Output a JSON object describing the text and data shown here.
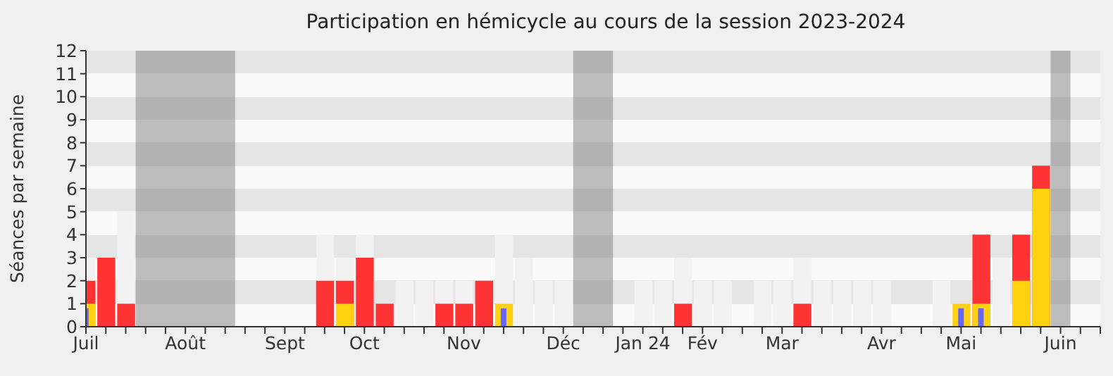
{
  "chart_data": {
    "type": "bar",
    "title": "Participation en hémicycle au cours de la session 2023-2024",
    "ylabel": "Séances par semaine",
    "x": [
      "2023-07-03",
      "2023-07-10",
      "2023-07-17",
      "2023-07-24",
      "2023-07-31",
      "2023-08-07",
      "2023-08-14",
      "2023-08-21",
      "2023-08-28",
      "2023-09-04",
      "2023-09-11",
      "2023-09-18",
      "2023-09-25",
      "2023-10-02",
      "2023-10-09",
      "2023-10-16",
      "2023-10-23",
      "2023-10-30",
      "2023-11-06",
      "2023-11-13",
      "2023-11-20",
      "2023-11-27",
      "2023-12-04",
      "2023-12-11",
      "2023-12-18",
      "2023-12-25",
      "2024-01-01",
      "2024-01-08",
      "2024-01-15",
      "2024-01-22",
      "2024-01-29",
      "2024-02-05",
      "2024-02-12",
      "2024-02-19",
      "2024-02-26",
      "2024-03-04",
      "2024-03-11",
      "2024-03-18",
      "2024-03-25",
      "2024-04-01",
      "2024-04-08",
      "2024-04-15",
      "2024-04-22",
      "2024-04-29",
      "2024-05-06",
      "2024-05-13",
      "2024-05-20",
      "2024-05-27",
      "2024-06-03"
    ],
    "series": [
      {
        "color": "#f2f2f2",
        "values": [
          3,
          null,
          5,
          null,
          null,
          null,
          null,
          null,
          null,
          null,
          null,
          null,
          4,
          3,
          4,
          null,
          2,
          2,
          2,
          2,
          null,
          4,
          3,
          2,
          2,
          null,
          null,
          null,
          2,
          2,
          3,
          2,
          2,
          null,
          2,
          2,
          3,
          2,
          2,
          2,
          2,
          null,
          null,
          2,
          null,
          null,
          3,
          null,
          null
        ]
      },
      {
        "color": "#ff3333",
        "values": [
          2,
          3,
          1,
          null,
          null,
          null,
          null,
          null,
          null,
          null,
          null,
          null,
          2,
          2,
          3,
          1,
          null,
          null,
          1,
          1,
          2,
          null,
          null,
          null,
          null,
          null,
          null,
          null,
          null,
          null,
          1,
          null,
          null,
          null,
          null,
          null,
          1,
          null,
          null,
          null,
          null,
          null,
          null,
          null,
          null,
          4,
          null,
          4,
          7
        ]
      },
      {
        "color": "#ffd10f",
        "values": [
          1,
          null,
          null,
          null,
          null,
          null,
          null,
          null,
          null,
          null,
          null,
          null,
          null,
          1,
          null,
          null,
          null,
          null,
          null,
          null,
          null,
          1,
          null,
          null,
          null,
          null,
          null,
          null,
          null,
          null,
          null,
          null,
          null,
          null,
          null,
          null,
          null,
          null,
          null,
          null,
          null,
          null,
          null,
          null,
          1,
          1,
          null,
          2,
          6
        ]
      },
      {
        "color": "#6666ff",
        "x": [
          "2023-07-03",
          "2023-11-27",
          "2024-05-06",
          "2024-05-13"
        ],
        "values": [
          0.8,
          0.8,
          0.8,
          0.8
        ]
      }
    ],
    "bands": [
      {
        "axis": "x",
        "from": "2023-07-20T12:00",
        "to": "2023-08-24T12:00",
        "color": "#808080"
      },
      {
        "axis": "x",
        "from": "2023-12-21T12:00",
        "to": "2024-01-04T12:00",
        "color": "#808080"
      },
      {
        "axis": "x",
        "from": "2024-06-06T12:00",
        "to": "2024-06-13T12:00",
        "color": "#808080"
      }
    ],
    "xlim": [
      "2023-07-03",
      "2024-06-24"
    ],
    "xticks": [
      {
        "value": "2023-07-03",
        "label": "Juil"
      },
      {
        "value": "2023-07-10",
        "label": null
      },
      {
        "value": "2023-07-17",
        "label": null
      },
      {
        "value": "2023-07-24",
        "label": null
      },
      {
        "value": "2023-07-31",
        "label": null
      },
      {
        "value": "2023-08-07",
        "label": "Août"
      },
      {
        "value": "2023-08-14",
        "label": null
      },
      {
        "value": "2023-08-21",
        "label": null
      },
      {
        "value": "2023-08-28",
        "label": null
      },
      {
        "value": "2023-09-04",
        "label": null
      },
      {
        "value": "2023-09-11",
        "label": "Sept"
      },
      {
        "value": "2023-09-18",
        "label": null
      },
      {
        "value": "2023-09-25",
        "label": null
      },
      {
        "value": "2023-10-02",
        "label": null
      },
      {
        "value": "2023-10-09",
        "label": "Oct"
      },
      {
        "value": "2023-10-16",
        "label": null
      },
      {
        "value": "2023-10-23",
        "label": null
      },
      {
        "value": "2023-10-30",
        "label": null
      },
      {
        "value": "2023-11-06",
        "label": null
      },
      {
        "value": "2023-11-13",
        "label": "Nov"
      },
      {
        "value": "2023-11-20",
        "label": null
      },
      {
        "value": "2023-11-27",
        "label": null
      },
      {
        "value": "2023-12-04",
        "label": null
      },
      {
        "value": "2023-12-11",
        "label": null
      },
      {
        "value": "2023-12-18",
        "label": "Déc"
      },
      {
        "value": "2023-12-25",
        "label": null
      },
      {
        "value": "2024-01-01",
        "label": null
      },
      {
        "value": "2024-01-08",
        "label": null
      },
      {
        "value": "2024-01-15",
        "label": "Jan 24"
      },
      {
        "value": "2024-01-22",
        "label": null
      },
      {
        "value": "2024-01-29",
        "label": null
      },
      {
        "value": "2024-02-05",
        "label": "Fév"
      },
      {
        "value": "2024-02-12",
        "label": null
      },
      {
        "value": "2024-02-19",
        "label": null
      },
      {
        "value": "2024-02-26",
        "label": null
      },
      {
        "value": "2024-03-04",
        "label": "Mar"
      },
      {
        "value": "2024-03-11",
        "label": null
      },
      {
        "value": "2024-03-18",
        "label": null
      },
      {
        "value": "2024-03-25",
        "label": null
      },
      {
        "value": "2024-04-01",
        "label": null
      },
      {
        "value": "2024-04-08",
        "label": "Avr"
      },
      {
        "value": "2024-04-15",
        "label": null
      },
      {
        "value": "2024-04-22",
        "label": null
      },
      {
        "value": "2024-04-29",
        "label": null
      },
      {
        "value": "2024-05-06",
        "label": "Mai"
      },
      {
        "value": "2024-05-13",
        "label": null
      },
      {
        "value": "2024-05-20",
        "label": null
      },
      {
        "value": "2024-05-27",
        "label": null
      },
      {
        "value": "2024-06-03",
        "label": null
      },
      {
        "value": "2024-06-10",
        "label": "Juin"
      },
      {
        "value": "2024-06-17",
        "label": null
      },
      {
        "value": "2024-06-24",
        "label": null
      }
    ],
    "ylim": [
      0,
      12
    ],
    "yticks": [
      0,
      1,
      2,
      3,
      4,
      5,
      6,
      7,
      8,
      9,
      10,
      11,
      12
    ]
  }
}
